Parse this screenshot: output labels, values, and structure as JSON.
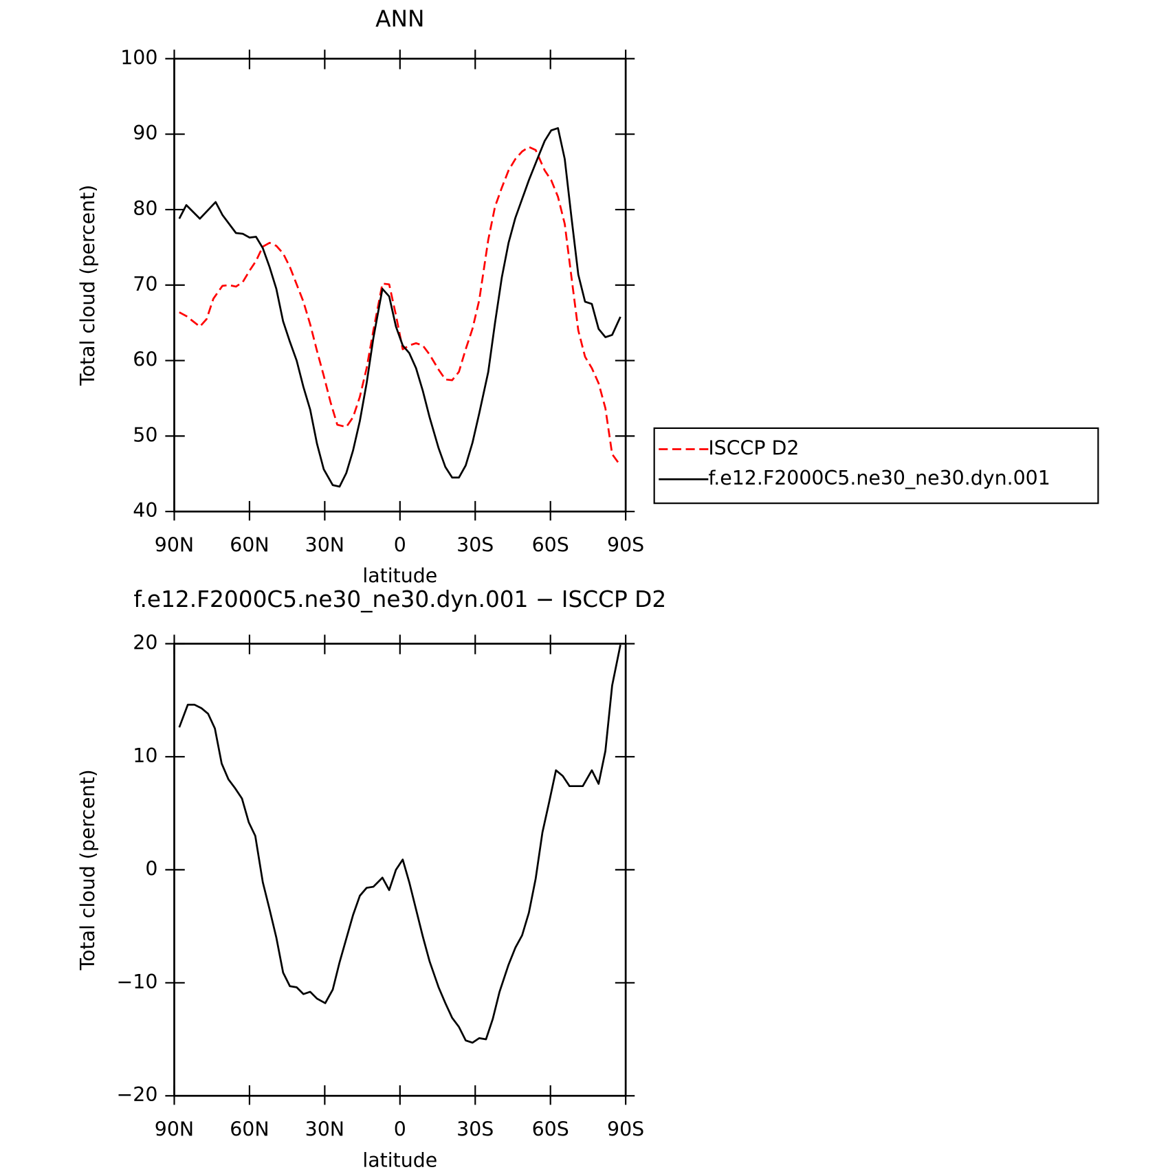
{
  "chart_data": [
    {
      "type": "line",
      "title": "ANN",
      "xlabel": "latitude",
      "ylabel": "Total cloud (percent)",
      "xlim": [
        90,
        -90
      ],
      "xticks": [
        {
          "value": 90,
          "label": "90N"
        },
        {
          "value": 60,
          "label": "60N"
        },
        {
          "value": 30,
          "label": "30N"
        },
        0,
        {
          "value": -30,
          "label": "30S"
        },
        {
          "value": -60,
          "label": "60S"
        },
        {
          "value": -90,
          "label": "90S"
        }
      ],
      "ylim": [
        40,
        100
      ],
      "yticks": [
        40,
        50,
        60,
        70,
        80,
        90,
        100
      ],
      "legend": "right",
      "series": [
        {
          "name": "ISCCP D2",
          "color": "#ff0000",
          "style": "dashed",
          "x": [
            88,
            85.2,
            79.8,
            77.1,
            74.4,
            70.8,
            68.1,
            65.4,
            62.7,
            60,
            57.4,
            54.7,
            52,
            49.3,
            46.6,
            43.9,
            41.2,
            38.5,
            35.8,
            33.1,
            30.4,
            27.7,
            25,
            21.4,
            18.7,
            16,
            13.3,
            10.6,
            7,
            4.3,
            1.6,
            -1.1,
            -3.7,
            -6.4,
            -9.1,
            -11.8,
            -15.4,
            -18.1,
            -20.8,
            -23.5,
            -26.2,
            -28.9,
            -31.6,
            -35.2,
            -37.9,
            -40.6,
            -43.3,
            -46,
            -48.7,
            -51.4,
            -54.1,
            -57.7,
            -60.3,
            -63,
            -65.7,
            -68.4,
            -71.1,
            -73.8,
            -76.5,
            -79.2,
            -81.9,
            -84.6,
            -87.9
          ],
          "values": [
            66.4,
            65.9,
            64.5,
            65.5,
            68.2,
            69.9,
            70,
            69.8,
            70.4,
            71.9,
            73.2,
            75.1,
            75.6,
            75.2,
            74.2,
            72.4,
            70.1,
            67.8,
            64.8,
            61.3,
            58,
            54.5,
            51.5,
            51.2,
            52.5,
            55.2,
            59,
            64,
            70.2,
            70.1,
            66,
            61.5,
            62,
            62.3,
            62,
            60.8,
            58.8,
            57.5,
            57.4,
            58.5,
            61.5,
            64.2,
            68,
            76,
            80.4,
            82.9,
            85.2,
            86.7,
            87.7,
            88.3,
            87.9,
            85.2,
            83.9,
            81.7,
            78.1,
            71,
            64,
            60.5,
            59,
            57,
            53.7,
            47.6,
            46.1
          ]
        },
        {
          "name": "f.e12.F2000C5.ne30_ne30.dyn.001",
          "color": "#000000",
          "style": "solid",
          "x": [
            88,
            85.2,
            79.8,
            73.5,
            70.8,
            65.4,
            62.7,
            60,
            57.4,
            54.7,
            52,
            49.3,
            46.6,
            43.9,
            41.2,
            38.5,
            35.8,
            33.1,
            30.4,
            26.8,
            24.1,
            21.4,
            18.7,
            16,
            13.3,
            10.6,
            7,
            4.3,
            1.6,
            -1.1,
            -3.7,
            -6.4,
            -9.1,
            -11.8,
            -15.4,
            -18.1,
            -20.8,
            -23.5,
            -26.2,
            -28.9,
            -31.6,
            -35.2,
            -37.9,
            -40.6,
            -43.3,
            -46,
            -48.7,
            -51.4,
            -55,
            -57.7,
            -60.3,
            -63,
            -65.7,
            -68.4,
            -71.1,
            -73.8,
            -76.5,
            -79.2,
            -81.9,
            -84.6,
            -87.9
          ],
          "values": [
            78.8,
            80.6,
            78.8,
            81,
            79.3,
            76.9,
            76.8,
            76.3,
            76.4,
            74.9,
            72.4,
            69.5,
            65.2,
            62.5,
            60,
            56.5,
            53.5,
            49,
            45.6,
            43.5,
            43.3,
            45.1,
            48.1,
            52,
            57,
            63,
            69.5,
            68.5,
            64.5,
            62,
            61,
            59,
            56,
            52.5,
            48.4,
            45.9,
            44.5,
            44.5,
            46.1,
            49.1,
            53,
            58.5,
            65,
            71,
            75.6,
            78.9,
            81.4,
            83.9,
            86.9,
            89.1,
            90.5,
            90.8,
            86.7,
            78.9,
            71.4,
            67.8,
            67.5,
            64.2,
            63.1,
            63.4,
            65.8
          ]
        }
      ]
    },
    {
      "type": "line",
      "title": "f.e12.F2000C5.ne30_ne30.dyn.001 − ISCCP D2",
      "xlabel": "latitude",
      "ylabel": "Total cloud (percent)",
      "xlim": [
        90,
        -90
      ],
      "xticks": [
        {
          "value": 90,
          "label": "90N"
        },
        {
          "value": 60,
          "label": "60N"
        },
        {
          "value": 30,
          "label": "30N"
        },
        0,
        {
          "value": -30,
          "label": "30S"
        },
        {
          "value": -60,
          "label": "60S"
        },
        {
          "value": -90,
          "label": "90S"
        }
      ],
      "ylim": [
        -20,
        20
      ],
      "yticks": [
        {
          "value": -20,
          "label": "−20"
        },
        {
          "value": -10,
          "label": "−10"
        },
        0,
        10,
        20
      ],
      "x": [
        88,
        84.6,
        81.9,
        79.2,
        76.5,
        73.8,
        71.1,
        68.4,
        65.7,
        63,
        60.3,
        57.7,
        54.7,
        52,
        49.3,
        46.6,
        43.9,
        41.2,
        38.5,
        35.8,
        33.1,
        29.8,
        26.8,
        24.1,
        21.4,
        18.7,
        16,
        13.3,
        10.6,
        7,
        4.3,
        1.6,
        -1.1,
        -3.7,
        -6.4,
        -9.1,
        -11.8,
        -15.4,
        -18.1,
        -20.8,
        -23.5,
        -26.2,
        -28.9,
        -31.6,
        -34.3,
        -37,
        -39.7,
        -43.3,
        -46,
        -48.7,
        -51.4,
        -54.1,
        -56.8,
        -59.5,
        -62.2,
        -64.9,
        -67.6,
        -70.2,
        -72.9,
        -76.5,
        -79.2,
        -81.9,
        -84.6,
        -87.9
      ],
      "series": [
        {
          "color": "#000000",
          "style": "solid",
          "values": [
            12.6,
            14.6,
            14.6,
            14.3,
            13.8,
            12.5,
            9.4,
            8,
            7.2,
            6.3,
            4.2,
            3,
            -1.1,
            -3.5,
            -6,
            -9.1,
            -10.3,
            -10.4,
            -11,
            -10.8,
            -11.4,
            -11.8,
            -10.6,
            -8.2,
            -6.1,
            -4,
            -2.3,
            -1.6,
            -1.5,
            -0.7,
            -1.8,
            0,
            0.9,
            -1.1,
            -3.5,
            -5.9,
            -8.1,
            -10.4,
            -11.8,
            -13.1,
            -13.9,
            -15.1,
            -15.3,
            -14.9,
            -15,
            -13.2,
            -10.8,
            -8.4,
            -6.9,
            -5.8,
            -3.8,
            -0.8,
            3.3,
            6,
            8.8,
            8.3,
            7.4,
            7.4,
            7.4,
            8.8,
            7.6,
            10.5,
            16.3,
            19.9
          ]
        }
      ]
    }
  ]
}
